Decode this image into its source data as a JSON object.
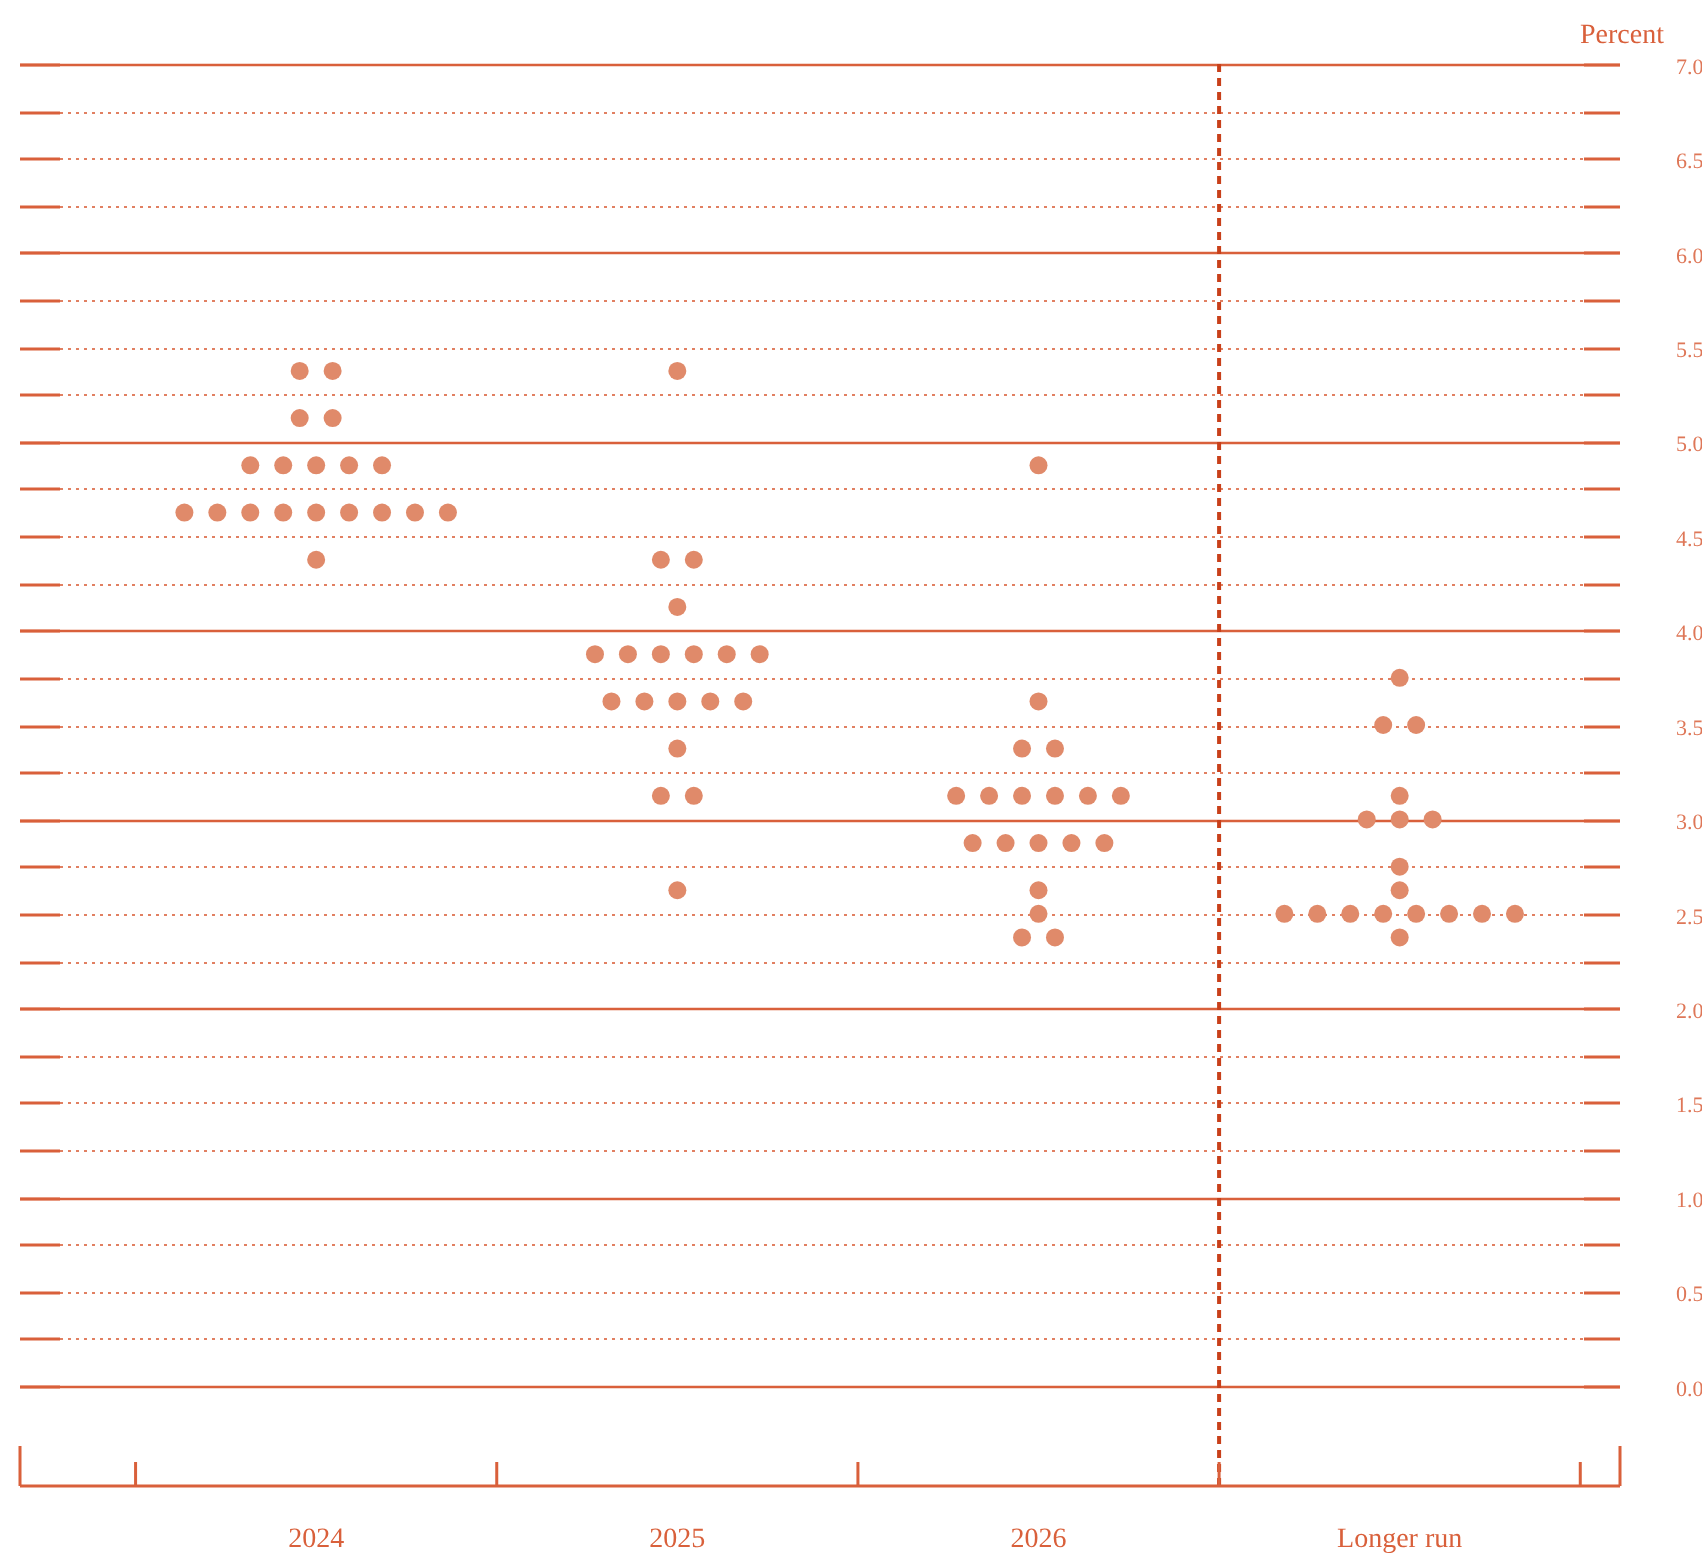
{
  "chart_data": {
    "type": "scatter",
    "ylabel": "Percent",
    "categories": [
      "2024",
      "2025",
      "2026",
      "Longer run"
    ],
    "series": [
      {
        "color": "#e08a6a",
        "values": [
          5.375,
          5.375,
          4.875,
          3.75
        ]
      },
      {
        "color": "#e08a6a",
        "values": [
          5.375,
          4.375,
          3.625,
          3.5
        ]
      },
      {
        "color": "#e08a6a",
        "values": [
          5.125,
          4.375,
          3.375,
          3.5
        ]
      },
      {
        "color": "#e08a6a",
        "values": [
          5.125,
          4.125,
          3.375,
          3.125
        ]
      },
      {
        "color": "#e08a6a",
        "values": [
          4.875,
          3.875,
          3.125,
          3
        ]
      },
      {
        "color": "#e08a6a",
        "values": [
          4.875,
          3.875,
          3.125,
          3
        ]
      },
      {
        "color": "#e08a6a",
        "values": [
          4.875,
          3.875,
          3.125,
          3
        ]
      },
      {
        "color": "#e08a6a",
        "values": [
          4.875,
          3.875,
          3.125,
          2.75
        ]
      },
      {
        "color": "#e08a6a",
        "values": [
          4.875,
          3.875,
          3.125,
          2.625
        ]
      },
      {
        "color": "#e08a6a",
        "values": [
          4.625,
          3.875,
          3.125,
          2.5
        ]
      },
      {
        "color": "#e08a6a",
        "values": [
          4.625,
          3.625,
          2.875,
          2.5
        ]
      },
      {
        "color": "#e08a6a",
        "values": [
          4.625,
          3.625,
          2.875,
          2.5
        ]
      },
      {
        "color": "#e08a6a",
        "values": [
          4.625,
          3.625,
          2.875,
          2.5
        ]
      },
      {
        "color": "#e08a6a",
        "values": [
          4.625,
          3.625,
          2.875,
          2.5
        ]
      },
      {
        "color": "#e08a6a",
        "values": [
          4.625,
          3.625,
          2.875,
          2.5
        ]
      },
      {
        "color": "#e08a6a",
        "values": [
          4.625,
          3.375,
          2.625,
          2.5
        ]
      },
      {
        "color": "#e08a6a",
        "values": [
          4.625,
          3.125,
          2.5,
          2.5
        ]
      },
      {
        "color": "#e08a6a",
        "values": [
          4.625,
          3.125,
          2.375,
          2.375
        ]
      },
      {
        "color": "#e08a6a",
        "values": [
          4.375,
          2.625,
          2.375,
          null
        ]
      }
    ],
    "marker": "circle",
    "grid": "y",
    "ref_lines": [
      {
        "axis": "x",
        "value": "Longer run",
        "color": "#c8401a",
        "line_style": "dashed"
      }
    ],
    "ylim": [
      0,
      7
    ],
    "yticks": [
      {
        "value": 0,
        "label": "0.0"
      },
      {
        "value": 0.25,
        "label": null
      },
      {
        "value": 0.5,
        "label": "0.5"
      },
      {
        "value": 0.75,
        "label": null
      },
      {
        "value": 1,
        "label": "1.0"
      },
      {
        "value": 1.25,
        "label": null
      },
      {
        "value": 1.5,
        "label": "1.5"
      },
      {
        "value": 1.75,
        "label": null
      },
      {
        "value": 2,
        "label": "2.0"
      },
      {
        "value": 2.25,
        "label": null
      },
      {
        "value": 2.5,
        "label": "2.5"
      },
      {
        "value": 2.75,
        "label": null
      },
      {
        "value": 3,
        "label": "3.0"
      },
      {
        "value": 3.25,
        "label": null
      },
      {
        "value": 3.5,
        "label": "3.5"
      },
      {
        "value": 3.75,
        "label": null
      },
      {
        "value": 4,
        "label": "4.0"
      },
      {
        "value": 4.25,
        "label": null
      },
      {
        "value": 4.5,
        "label": "4.5"
      },
      {
        "value": 4.75,
        "label": null
      },
      {
        "value": 5,
        "label": "5.0"
      },
      {
        "value": 5.25,
        "label": null
      },
      {
        "value": 5.5,
        "label": "5.5"
      },
      {
        "value": 5.75,
        "label": null
      },
      {
        "value": 6,
        "label": "6.0"
      },
      {
        "value": 6.25,
        "label": null
      },
      {
        "value": 6.5,
        "label": "6.5"
      },
      {
        "value": 6.75,
        "label": null
      },
      {
        "value": 7,
        "label": "7.0"
      }
    ]
  }
}
